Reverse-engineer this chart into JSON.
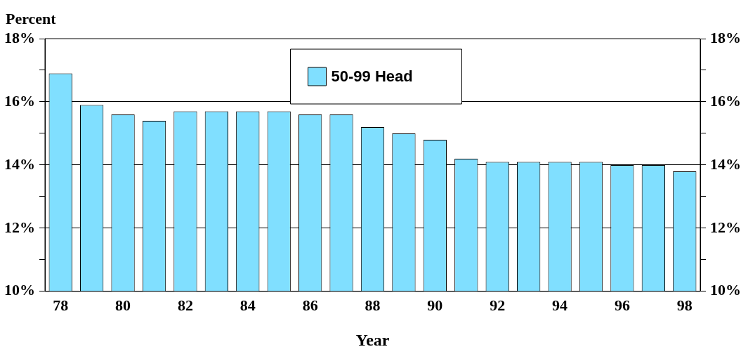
{
  "chart_data": {
    "type": "bar",
    "xlabel": "Year",
    "ylabel": "Percent",
    "categories": [
      "78",
      null,
      "80",
      null,
      "82",
      null,
      "84",
      null,
      "86",
      null,
      "88",
      null,
      "90",
      null,
      "92",
      null,
      "94",
      null,
      "96",
      null,
      "98"
    ],
    "series": [
      {
        "name": "50-99 Head",
        "color": "#80dfff",
        "values": [
          16.9,
          15.9,
          15.6,
          15.4,
          15.7,
          15.7,
          15.7,
          15.7,
          15.6,
          15.6,
          15.2,
          15.0,
          14.8,
          14.2,
          14.1,
          14.1,
          14.1,
          14.1,
          14.0,
          14.0,
          13.8
        ]
      }
    ],
    "ylim": [
      10,
      18
    ],
    "yticks": [
      {
        "value": 10,
        "label": "10%"
      },
      {
        "value": 11,
        "label": null
      },
      {
        "value": 12,
        "label": "12%"
      },
      {
        "value": 13,
        "label": null
      },
      {
        "value": 14,
        "label": "14%"
      },
      {
        "value": 15,
        "label": null
      },
      {
        "value": 16,
        "label": "16%"
      },
      {
        "value": 17,
        "label": null
      },
      {
        "value": 18,
        "label": "18%"
      }
    ],
    "y2lim": [
      10,
      18
    ],
    "y2ticks": [
      {
        "value": 10,
        "label": "10%"
      },
      {
        "value": 11,
        "label": null
      },
      {
        "value": 12,
        "label": "12%"
      },
      {
        "value": 13,
        "label": null
      },
      {
        "value": 14,
        "label": "14%"
      },
      {
        "value": 15,
        "label": null
      },
      {
        "value": 16,
        "label": "16%"
      },
      {
        "value": 17,
        "label": null
      },
      {
        "value": 18,
        "label": "18%"
      }
    ],
    "grid": "y",
    "legend": "top"
  }
}
